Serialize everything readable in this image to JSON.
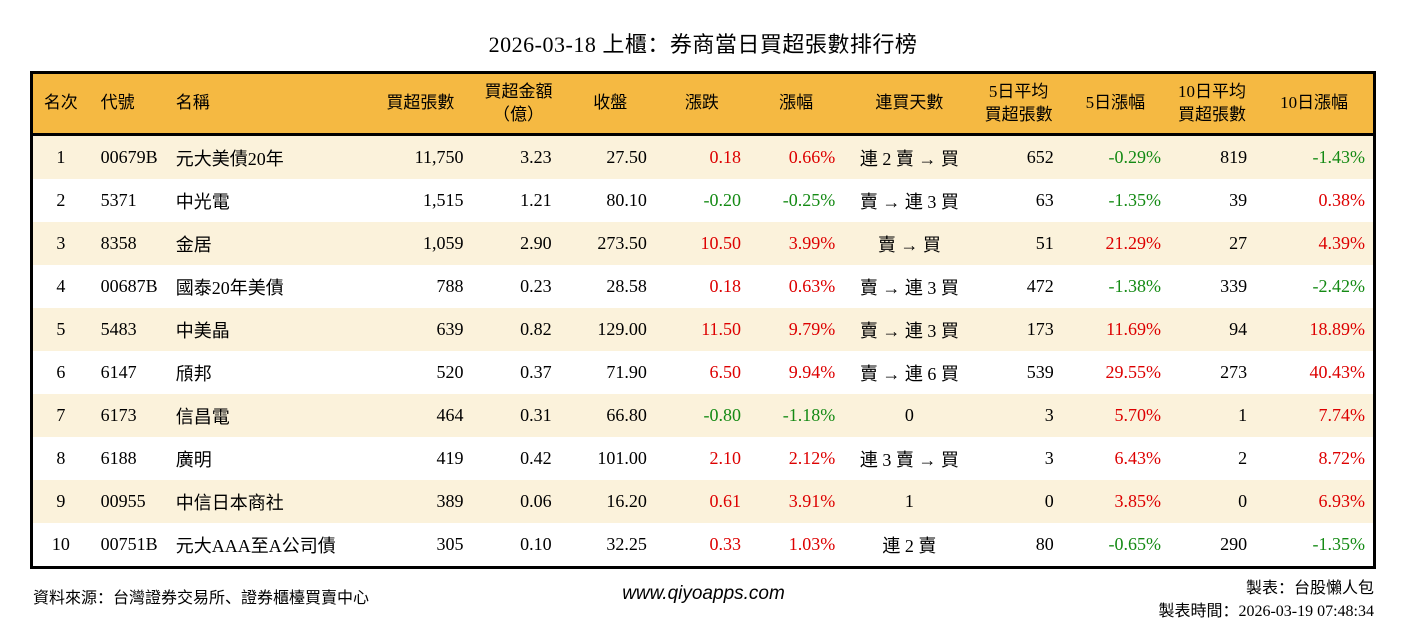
{
  "title": "2026-03-18 上櫃：券商當日買超張數排行榜",
  "colors": {
    "red": "#dd0000",
    "green": "#148a14",
    "header_bg": "#f5b942",
    "stripe_bg": "#fbf2db",
    "border": "#000000"
  },
  "table": {
    "headers": [
      "名次",
      "代號",
      "名稱",
      "買超張數",
      "買超金額\n（億）",
      "收盤",
      "漲跌",
      "漲幅",
      "連買天數",
      "5日平均\n買超張數",
      "5日漲幅",
      "10日平均\n買超張數",
      "10日漲幅"
    ],
    "rows": [
      {
        "rank": "1",
        "code": "00679B",
        "name": "元大美債20年",
        "vol": "11,750",
        "amount": "3.23",
        "close": "27.50",
        "change": "0.18",
        "change_c": "red",
        "pct": "0.66%",
        "pct_c": "red",
        "streak": "連 2 賣 → 買",
        "avg5": "652",
        "pct5": "-0.29%",
        "pct5_c": "green",
        "avg10": "819",
        "pct10": "-1.43%",
        "pct10_c": "green"
      },
      {
        "rank": "2",
        "code": "5371",
        "name": "中光電",
        "vol": "1,515",
        "amount": "1.21",
        "close": "80.10",
        "change": "-0.20",
        "change_c": "green",
        "pct": "-0.25%",
        "pct_c": "green",
        "streak": "賣 → 連 3 買",
        "avg5": "63",
        "pct5": "-1.35%",
        "pct5_c": "green",
        "avg10": "39",
        "pct10": "0.38%",
        "pct10_c": "red"
      },
      {
        "rank": "3",
        "code": "8358",
        "name": "金居",
        "vol": "1,059",
        "amount": "2.90",
        "close": "273.50",
        "change": "10.50",
        "change_c": "red",
        "pct": "3.99%",
        "pct_c": "red",
        "streak": "賣 → 買",
        "avg5": "51",
        "pct5": "21.29%",
        "pct5_c": "red",
        "avg10": "27",
        "pct10": "4.39%",
        "pct10_c": "red"
      },
      {
        "rank": "4",
        "code": "00687B",
        "name": "國泰20年美債",
        "vol": "788",
        "amount": "0.23",
        "close": "28.58",
        "change": "0.18",
        "change_c": "red",
        "pct": "0.63%",
        "pct_c": "red",
        "streak": "賣 → 連 3 買",
        "avg5": "472",
        "pct5": "-1.38%",
        "pct5_c": "green",
        "avg10": "339",
        "pct10": "-2.42%",
        "pct10_c": "green"
      },
      {
        "rank": "5",
        "code": "5483",
        "name": "中美晶",
        "vol": "639",
        "amount": "0.82",
        "close": "129.00",
        "change": "11.50",
        "change_c": "red",
        "pct": "9.79%",
        "pct_c": "red",
        "streak": "賣 → 連 3 買",
        "avg5": "173",
        "pct5": "11.69%",
        "pct5_c": "red",
        "avg10": "94",
        "pct10": "18.89%",
        "pct10_c": "red"
      },
      {
        "rank": "6",
        "code": "6147",
        "name": "頎邦",
        "vol": "520",
        "amount": "0.37",
        "close": "71.90",
        "change": "6.50",
        "change_c": "red",
        "pct": "9.94%",
        "pct_c": "red",
        "streak": "賣 → 連 6 買",
        "avg5": "539",
        "pct5": "29.55%",
        "pct5_c": "red",
        "avg10": "273",
        "pct10": "40.43%",
        "pct10_c": "red"
      },
      {
        "rank": "7",
        "code": "6173",
        "name": "信昌電",
        "vol": "464",
        "amount": "0.31",
        "close": "66.80",
        "change": "-0.80",
        "change_c": "green",
        "pct": "-1.18%",
        "pct_c": "green",
        "streak": "0",
        "avg5": "3",
        "pct5": "5.70%",
        "pct5_c": "red",
        "avg10": "1",
        "pct10": "7.74%",
        "pct10_c": "red"
      },
      {
        "rank": "8",
        "code": "6188",
        "name": "廣明",
        "vol": "419",
        "amount": "0.42",
        "close": "101.00",
        "change": "2.10",
        "change_c": "red",
        "pct": "2.12%",
        "pct_c": "red",
        "streak": "連 3 賣 → 買",
        "avg5": "3",
        "pct5": "6.43%",
        "pct5_c": "red",
        "avg10": "2",
        "pct10": "8.72%",
        "pct10_c": "red"
      },
      {
        "rank": "9",
        "code": "00955",
        "name": "中信日本商社",
        "vol": "389",
        "amount": "0.06",
        "close": "16.20",
        "change": "0.61",
        "change_c": "red",
        "pct": "3.91%",
        "pct_c": "red",
        "streak": "1",
        "avg5": "0",
        "pct5": "3.85%",
        "pct5_c": "red",
        "avg10": "0",
        "pct10": "6.93%",
        "pct10_c": "red"
      },
      {
        "rank": "10",
        "code": "00751B",
        "name": "元大AAA至A公司債",
        "vol": "305",
        "amount": "0.10",
        "close": "32.25",
        "change": "0.33",
        "change_c": "red",
        "pct": "1.03%",
        "pct_c": "red",
        "streak": "連 2 賣",
        "avg5": "80",
        "pct5": "-0.65%",
        "pct5_c": "green",
        "avg10": "290",
        "pct10": "-1.35%",
        "pct10_c": "green"
      }
    ]
  },
  "footer": {
    "source": "資料來源：台灣證券交易所、證券櫃檯買賣中心",
    "website": "www.qiyoapps.com",
    "maker": "製表：台股懶人包",
    "generated": "製表時間：2026-03-19 07:48:34"
  }
}
